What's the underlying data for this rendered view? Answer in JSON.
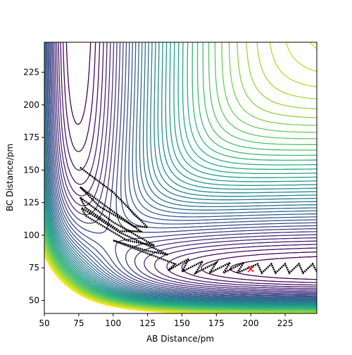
{
  "chart_data": {
    "type": "contour",
    "x_label": "AB Distance/pm",
    "y_label": "BC Distance/pm",
    "xlim": [
      50,
      248
    ],
    "ylim": [
      40,
      248
    ],
    "xticks": [
      50,
      75,
      100,
      125,
      150,
      175,
      200,
      225
    ],
    "yticks": [
      50,
      75,
      100,
      125,
      150,
      175,
      200,
      225
    ],
    "contour": {
      "colormap": "viridis",
      "levels": [
        -440,
        -430,
        -420,
        -410,
        -400,
        -390,
        -380,
        -370,
        -360,
        -350,
        -340,
        -330,
        -320,
        -310,
        -300,
        -290,
        -280,
        -270,
        -260,
        -250,
        -240,
        -230,
        -220,
        -210,
        -200,
        -190,
        -180,
        -170,
        -160,
        -150,
        -140,
        -130,
        -120,
        -110,
        -100,
        -90,
        -80,
        -70,
        -60,
        -50,
        -40,
        -30,
        -20,
        -10
      ]
    },
    "trajectory": {
      "color": "#000000",
      "x": [
        76,
        100,
        125,
        115,
        90,
        76,
        95,
        120,
        105,
        80,
        76,
        100,
        130,
        110,
        80,
        77,
        105,
        140,
        125,
        100,
        115,
        145,
        140,
        155,
        150,
        165,
        160,
        175,
        170,
        185,
        180,
        195,
        190,
        205,
        208,
        215,
        218,
        225,
        228,
        235,
        238,
        245,
        248
      ],
      "y": [
        152,
        133,
        106,
        107,
        122,
        137,
        122,
        103,
        103,
        121,
        129,
        110,
        92,
        96,
        115,
        121,
        102,
        85,
        88,
        96,
        90,
        78,
        73,
        82,
        72,
        80,
        71,
        79,
        71,
        79,
        71,
        79,
        71,
        78,
        71,
        78,
        71,
        78,
        71,
        78,
        71,
        78,
        72
      ]
    },
    "marker": {
      "x": 200,
      "y": 74,
      "color": "#ff0000"
    }
  }
}
